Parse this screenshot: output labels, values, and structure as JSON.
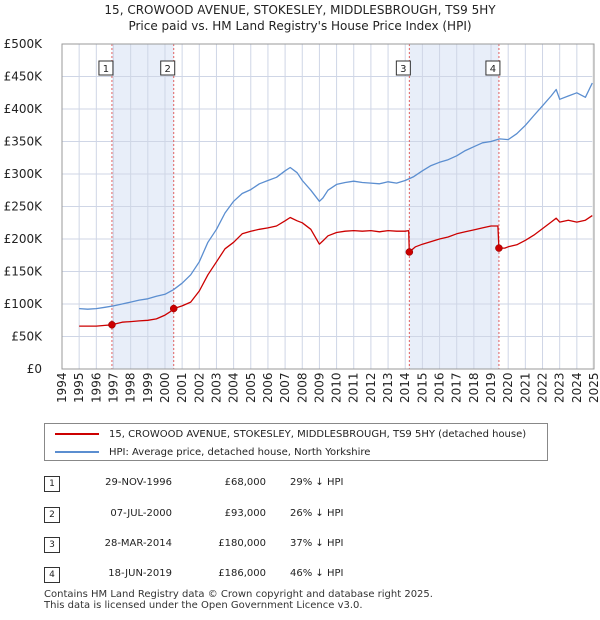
{
  "title_line1": "15, CROWOOD AVENUE, STOKESLEY, MIDDLESBROUGH, TS9 5HY",
  "title_line2": "Price paid vs. HM Land Registry's House Price Index (HPI)",
  "colors": {
    "property": "#cc0000",
    "hpi": "#5b8ed0",
    "shade": "#e8eef9",
    "vline": "#e06060",
    "grid": "#cfd6e6"
  },
  "chart_data": {
    "type": "line",
    "title": "15, CROWOOD AVENUE, STOKESLEY, MIDDLESBROUGH, TS9 5HY — Price paid vs. HM Land Registry's House Price Index (HPI)",
    "xlabel": "",
    "ylabel": "",
    "xlim": [
      1994,
      2025
    ],
    "ylim": [
      0,
      500000
    ],
    "y_ticks": [
      0,
      50000,
      100000,
      150000,
      200000,
      250000,
      300000,
      350000,
      400000,
      450000,
      500000
    ],
    "y_tick_labels": [
      "£0",
      "£50K",
      "£100K",
      "£150K",
      "£200K",
      "£250K",
      "£300K",
      "£350K",
      "£400K",
      "£450K",
      "£500K"
    ],
    "x_ticks": [
      1994,
      1995,
      1996,
      1997,
      1998,
      1999,
      2000,
      2001,
      2002,
      2003,
      2004,
      2005,
      2006,
      2007,
      2008,
      2009,
      2010,
      2011,
      2012,
      2013,
      2014,
      2015,
      2016,
      2017,
      2018,
      2019,
      2020,
      2021,
      2022,
      2023,
      2024,
      2025
    ],
    "x_tick_labels": [
      "1994",
      "1995",
      "1996",
      "1997",
      "1998",
      "1999",
      "2000",
      "2001",
      "2002",
      "2003",
      "2004",
      "2005",
      "2006",
      "2007",
      "2008",
      "2009",
      "2010",
      "2011",
      "2012",
      "2013",
      "2014",
      "2015",
      "2016",
      "2017",
      "2018",
      "2019",
      "2020",
      "2021",
      "2022",
      "2023",
      "2024",
      "2025"
    ],
    "grid": true,
    "legend_position": "below",
    "shaded_periods": [
      [
        1996.91,
        2000.51
      ],
      [
        2014.24,
        2019.46
      ]
    ],
    "series": [
      {
        "name": "15, CROWOOD AVENUE, STOKESLEY, MIDDLESBROUGH, TS9 5HY (detached house)",
        "color": "#cc0000",
        "x": [
          1995.0,
          1995.5,
          1996.0,
          1996.5,
          1996.91,
          1997.5,
          1998.0,
          1998.5,
          1999.0,
          1999.5,
          2000.0,
          2000.3,
          2000.51,
          2001.0,
          2001.5,
          2002.0,
          2002.5,
          2003.0,
          2003.5,
          2004.0,
          2004.5,
          2005.0,
          2005.5,
          2006.0,
          2006.5,
          2007.0,
          2007.3,
          2007.7,
          2008.0,
          2008.5,
          2009.0,
          2009.2,
          2009.5,
          2010.0,
          2010.5,
          2011.0,
          2011.5,
          2012.0,
          2012.5,
          2013.0,
          2013.5,
          2014.0,
          2014.2,
          2014.24,
          2014.6,
          2015.0,
          2015.5,
          2016.0,
          2016.5,
          2017.0,
          2017.5,
          2018.0,
          2018.5,
          2019.0,
          2019.4,
          2019.46,
          2019.8,
          2020.0,
          2020.5,
          2021.0,
          2021.5,
          2022.0,
          2022.5,
          2022.8,
          2023.0,
          2023.5,
          2024.0,
          2024.5,
          2024.9
        ],
        "values": [
          66000,
          66000,
          66000,
          67000,
          68000,
          72000,
          73000,
          74000,
          75000,
          77000,
          83000,
          88000,
          93000,
          97000,
          103000,
          120000,
          145000,
          165000,
          185000,
          195000,
          208000,
          212000,
          215000,
          217000,
          220000,
          228000,
          233000,
          228000,
          225000,
          215000,
          192000,
          197000,
          205000,
          210000,
          212000,
          213000,
          212000,
          213000,
          211000,
          213000,
          212000,
          212000,
          213000,
          180000,
          188000,
          192000,
          196000,
          200000,
          203000,
          208000,
          211000,
          214000,
          217000,
          220000,
          220000,
          186000,
          186000,
          188000,
          191000,
          198000,
          206000,
          216000,
          226000,
          232000,
          226000,
          229000,
          226000,
          229000,
          236000
        ]
      },
      {
        "name": "HPI: Average price, detached house, North Yorkshire",
        "color": "#5b8ed0",
        "x": [
          1995.0,
          1995.5,
          1996.0,
          1996.5,
          1997.0,
          1997.5,
          1998.0,
          1998.5,
          1999.0,
          1999.5,
          2000.0,
          2000.5,
          2001.0,
          2001.5,
          2002.0,
          2002.5,
          2003.0,
          2003.5,
          2004.0,
          2004.5,
          2005.0,
          2005.5,
          2006.0,
          2006.5,
          2007.0,
          2007.3,
          2007.7,
          2008.0,
          2008.5,
          2009.0,
          2009.2,
          2009.5,
          2010.0,
          2010.5,
          2011.0,
          2011.5,
          2012.0,
          2012.5,
          2013.0,
          2013.5,
          2014.0,
          2014.5,
          2015.0,
          2015.5,
          2016.0,
          2016.5,
          2017.0,
          2017.5,
          2018.0,
          2018.5,
          2019.0,
          2019.5,
          2020.0,
          2020.5,
          2021.0,
          2021.5,
          2022.0,
          2022.5,
          2022.8,
          2023.0,
          2023.5,
          2024.0,
          2024.5,
          2024.9
        ],
        "values": [
          93000,
          92000,
          93000,
          95000,
          97000,
          100000,
          103000,
          106000,
          108000,
          112000,
          115000,
          122000,
          132000,
          145000,
          165000,
          195000,
          215000,
          240000,
          258000,
          270000,
          276000,
          285000,
          290000,
          295000,
          305000,
          310000,
          302000,
          290000,
          275000,
          258000,
          263000,
          275000,
          284000,
          287000,
          289000,
          287000,
          286000,
          285000,
          288000,
          286000,
          290000,
          296000,
          305000,
          313000,
          318000,
          322000,
          328000,
          336000,
          342000,
          348000,
          350000,
          354000,
          353000,
          362000,
          375000,
          390000,
          405000,
          420000,
          430000,
          415000,
          420000,
          425000,
          418000,
          440000
        ]
      }
    ],
    "markers": [
      {
        "label": "1",
        "x": 1996.91,
        "y": 68000
      },
      {
        "label": "2",
        "x": 2000.51,
        "y": 93000
      },
      {
        "label": "3",
        "x": 2014.24,
        "y": 180000
      },
      {
        "label": "4",
        "x": 2019.46,
        "y": 186000
      }
    ]
  },
  "legend": {
    "property": "15, CROWOOD AVENUE, STOKESLEY, MIDDLESBROUGH, TS9 5HY (detached house)",
    "hpi": "HPI: Average price, detached house, North Yorkshire"
  },
  "transactions": [
    {
      "num": "1",
      "date": "29-NOV-1996",
      "price": "£68,000",
      "hpi": "29% ↓ HPI"
    },
    {
      "num": "2",
      "date": "07-JUL-2000",
      "price": "£93,000",
      "hpi": "26% ↓ HPI"
    },
    {
      "num": "3",
      "date": "28-MAR-2014",
      "price": "£180,000",
      "hpi": "37% ↓ HPI"
    },
    {
      "num": "4",
      "date": "18-JUN-2019",
      "price": "£186,000",
      "hpi": "46% ↓ HPI"
    }
  ],
  "footer": {
    "line1": "Contains HM Land Registry data © Crown copyright and database right 2025.",
    "line2": "This data is licensed under the Open Government Licence v3.0."
  }
}
